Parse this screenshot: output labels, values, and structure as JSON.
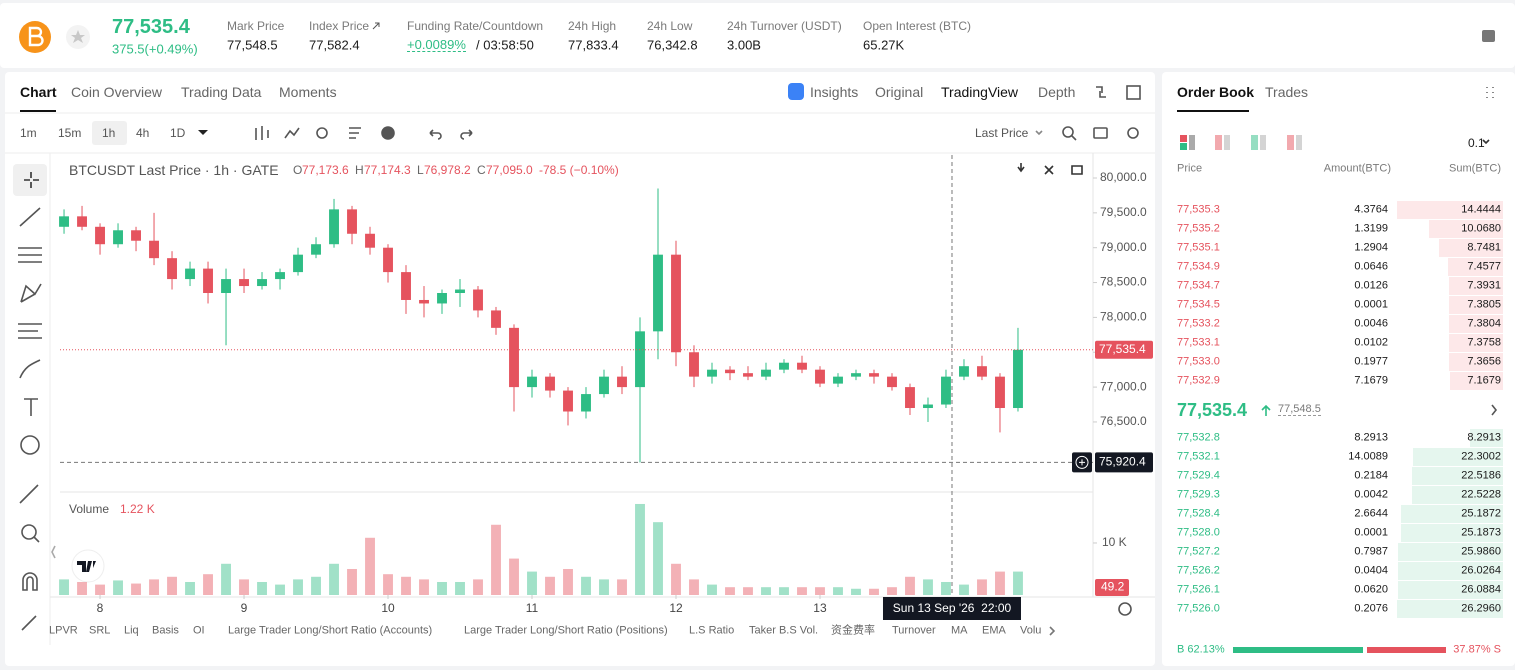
{
  "header": {
    "price": "77,535.4",
    "change": "375.5(+0.49%)",
    "stats": [
      {
        "label": "Mark Price",
        "value": "77,548.5"
      },
      {
        "label": "Index Price",
        "value": "77,582.4"
      }
    ],
    "funding": {
      "label": "Funding Rate/Countdown",
      "rate": "+0.0089%",
      "countdown": "/ 03:58:50"
    },
    "more_stats": [
      {
        "label": "24h High",
        "value": "77,833.4"
      },
      {
        "label": "24h Low",
        "value": "76,342.8"
      },
      {
        "label": "24h Turnover (USDT)",
        "value": "3.00B"
      },
      {
        "label": "Open Interest (BTC)",
        "value": "65.27K"
      }
    ]
  },
  "chart_tabs": [
    "Chart",
    "Coin Overview",
    "Trading Data",
    "Moments"
  ],
  "view_tabs": [
    "Insights",
    "Original",
    "TradingView",
    "Depth"
  ],
  "intervals": [
    "1m",
    "15m",
    "1h",
    "4h",
    "1D"
  ],
  "price_type": "Last Price",
  "indicators": [
    "LPVR",
    "SRL",
    "Liq",
    "Basis",
    "OI",
    "Large Trader Long/Short Ratio (Accounts)",
    "Large Trader Long/Short Ratio (Positions)",
    "L.S Ratio",
    "Taker B.S Vol.",
    "资金费率",
    "Turnover",
    "MA",
    "EMA",
    "Volu"
  ],
  "chart_data": {
    "type": "candlestick",
    "title": "BTCUSDT Last Price · 1h · GATE",
    "legend_ohlc": [
      {
        "label": "O",
        "value": "77,173.6"
      },
      {
        "label": "H",
        "value": "77,174.3"
      },
      {
        "label": "L",
        "value": "76,978.2"
      },
      {
        "label": "C",
        "value": "77,095.0"
      }
    ],
    "legend_change": "-78.5 (−0.10%)",
    "colors": {
      "up": "#2ebd85",
      "down": "#e5535e"
    },
    "x": [
      7.75,
      7.875,
      8,
      8.125,
      8.25,
      8.375,
      8.5,
      8.625,
      8.75,
      8.875,
      9,
      9.125,
      9.25,
      9.375,
      9.5,
      9.625,
      9.75,
      9.875,
      10,
      10.125,
      10.25,
      10.375,
      10.5,
      10.625,
      10.75,
      10.875,
      11,
      11.125,
      11.25,
      11.375,
      11.5,
      11.625,
      11.75,
      11.875,
      12,
      12.125,
      12.25,
      12.375,
      12.5,
      12.625,
      12.75,
      12.875,
      13,
      13.125,
      13.25,
      13.375,
      13.5,
      13.625,
      13.75,
      13.875,
      14,
      14.125,
      14.25,
      14.375
    ],
    "open": [
      79300,
      79450,
      79300,
      79050,
      79250,
      79100,
      78850,
      78550,
      78700,
      78350,
      78550,
      78450,
      78550,
      78650,
      78900,
      79050,
      79550,
      79200,
      79000,
      78650,
      78250,
      78200,
      78350,
      78400,
      78100,
      77850,
      77000,
      77150,
      76950,
      76650,
      76900,
      77150,
      77000,
      77800,
      78900,
      77500,
      77150,
      77250,
      77200,
      77150,
      77250,
      77350,
      77250,
      77050,
      77150,
      77200,
      77150,
      77000,
      76700,
      76750,
      77150,
      77300,
      77150,
      76700
    ],
    "high": [
      79550,
      79600,
      79350,
      79350,
      79300,
      79500,
      78950,
      78800,
      78800,
      78700,
      78700,
      78650,
      78700,
      79000,
      79150,
      79700,
      79600,
      79300,
      79050,
      78750,
      78450,
      78400,
      78550,
      78450,
      78150,
      77900,
      77250,
      77200,
      77000,
      77000,
      77250,
      77300,
      78000,
      79850,
      79100,
      77600,
      77350,
      77300,
      77300,
      77350,
      77400,
      77450,
      77300,
      77200,
      77250,
      77250,
      77200,
      77050,
      76850,
      77250,
      77400,
      77450,
      77200,
      77850
    ],
    "low": [
      79200,
      79250,
      78900,
      79000,
      78950,
      78750,
      78400,
      78450,
      78200,
      77600,
      78350,
      78400,
      78400,
      78600,
      78850,
      79000,
      79050,
      78900,
      78500,
      78050,
      78000,
      78050,
      78150,
      78000,
      77750,
      76650,
      76850,
      76850,
      76450,
      76550,
      76850,
      76900,
      75920,
      77400,
      77300,
      77000,
      77050,
      77100,
      77100,
      77100,
      77200,
      77200,
      77000,
      77000,
      77100,
      77050,
      76950,
      76600,
      76500,
      76700,
      77100,
      77100,
      76350,
      76650
    ],
    "close": [
      79450,
      79300,
      79050,
      79250,
      79100,
      78850,
      78550,
      78700,
      78350,
      78550,
      78450,
      78550,
      78650,
      78900,
      79050,
      79550,
      79200,
      79000,
      78650,
      78250,
      78200,
      78350,
      78400,
      78100,
      77850,
      77000,
      77150,
      76950,
      76650,
      76900,
      77150,
      77000,
      77800,
      78900,
      77500,
      77150,
      77250,
      77200,
      77150,
      77250,
      77350,
      77250,
      77050,
      77150,
      77200,
      77150,
      77000,
      76700,
      76750,
      77150,
      77300,
      77150,
      76700,
      77535.4
    ],
    "volume": [
      3000,
      2500,
      2000,
      2800,
      2200,
      3000,
      3500,
      2500,
      4000,
      6000,
      3000,
      2500,
      2000,
      3000,
      3500,
      6000,
      5000,
      11000,
      4000,
      3500,
      3000,
      2500,
      2500,
      3000,
      13500,
      7000,
      4500,
      3500,
      5000,
      3500,
      3000,
      3000,
      17500,
      14000,
      6000,
      3000,
      2000,
      1500,
      1500,
      1500,
      1500,
      1500,
      1500,
      1500,
      1200,
      1200,
      1500,
      3500,
      3000,
      2500,
      2000,
      3000,
      4500,
      4500
    ],
    "xlim": [
      7.722,
      14.896
    ],
    "xticks": [
      8,
      9,
      10,
      11,
      12,
      13
    ],
    "ylim": [
      75495,
      80330
    ],
    "yticks": [
      {
        "value": 80000,
        "label": "80,000.0"
      },
      {
        "value": 79500,
        "label": "79,500.0"
      },
      {
        "value": 79000,
        "label": "79,000.0"
      },
      {
        "value": 78500,
        "label": "78,500.0"
      },
      {
        "value": 78000,
        "label": "78,000.0"
      },
      {
        "value": 77500,
        "label": "77,500.0"
      },
      {
        "value": 77000,
        "label": "77,000.0"
      },
      {
        "value": 76500,
        "label": "76,500.0"
      }
    ],
    "grid": false,
    "last_price": {
      "value": 77535.4,
      "label": "77,535.4"
    },
    "crosshair": {
      "x": 13.9167,
      "time_label": "Sun 13 Sep '26  22:00",
      "price": {
        "value": 75920.4,
        "label": "75,920.4"
      }
    },
    "volume_title": "Volume",
    "volume_value": "1.22 K",
    "volume_last_label": "49.2",
    "volume_ylim": [
      0,
      19800
    ],
    "volume_yticks": [
      {
        "value": 10000,
        "label": "10 K"
      }
    ]
  },
  "order_book": {
    "tabs": [
      "Order Book",
      "Trades"
    ],
    "precision": "0.1",
    "headers": [
      "Price",
      "Amount(BTC)",
      "Sum(BTC)"
    ],
    "asks": [
      [
        "77,535.3",
        "4.3764",
        "14.4444"
      ],
      [
        "77,535.2",
        "1.3199",
        "10.0680"
      ],
      [
        "77,535.1",
        "1.2904",
        "8.7481"
      ],
      [
        "77,534.9",
        "0.0646",
        "7.4577"
      ],
      [
        "77,534.7",
        "0.0126",
        "7.3931"
      ],
      [
        "77,534.5",
        "0.0001",
        "7.3805"
      ],
      [
        "77,533.2",
        "0.0046",
        "7.3804"
      ],
      [
        "77,533.1",
        "0.0102",
        "7.3758"
      ],
      [
        "77,533.0",
        "0.1977",
        "7.3656"
      ],
      [
        "77,532.9",
        "7.1679",
        "7.1679"
      ]
    ],
    "mid_price": "77,535.4",
    "mark_price": "77,548.5",
    "bids": [
      [
        "77,532.8",
        "8.2913",
        "8.2913"
      ],
      [
        "77,532.1",
        "14.0089",
        "22.3002"
      ],
      [
        "77,529.4",
        "0.2184",
        "22.5186"
      ],
      [
        "77,529.3",
        "0.0042",
        "22.5228"
      ],
      [
        "77,528.4",
        "2.6644",
        "25.1872"
      ],
      [
        "77,528.0",
        "0.0001",
        "25.1873"
      ],
      [
        "77,527.2",
        "0.7987",
        "25.9860"
      ],
      [
        "77,526.2",
        "0.0404",
        "26.0264"
      ],
      [
        "77,526.1",
        "0.0620",
        "26.0884"
      ],
      [
        "77,526.0",
        "0.2076",
        "26.2960"
      ]
    ],
    "ratio": {
      "values": [
        62.13,
        37.87
      ],
      "value_labels": [
        "B 62.13%",
        "37.87% S"
      ]
    }
  }
}
